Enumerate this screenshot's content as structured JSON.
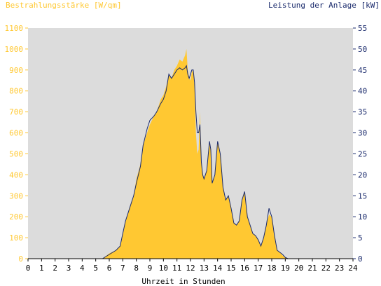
{
  "chart_data": {
    "type": "area",
    "title_left": "Bestrahlungsstärke [W/qm]",
    "title_right": "Leistung der Anlage [kW]",
    "xlabel": "Uhrzeit in Stunden",
    "x_ticks": [
      "0",
      "1",
      "2",
      "3",
      "4",
      "5",
      "6",
      "7",
      "8",
      "9",
      "10",
      "11",
      "12",
      "13",
      "14",
      "15",
      "16",
      "17",
      "18",
      "19",
      "20",
      "21",
      "22",
      "23",
      "24"
    ],
    "xlim": [
      0,
      24
    ],
    "y_left_ticks": [
      "0",
      "100",
      "200",
      "300",
      "400",
      "500",
      "600",
      "700",
      "800",
      "900",
      "1000",
      "1100"
    ],
    "ylim_left": [
      0,
      1100
    ],
    "y_right_ticks": [
      "0",
      "5",
      "10",
      "15",
      "20",
      "25",
      "30",
      "35",
      "40",
      "45",
      "50",
      "55"
    ],
    "ylim_right": [
      0,
      55
    ],
    "grid": false,
    "colors": {
      "irradiance": "#ffc832",
      "power": "#1a2a6c",
      "left_axis_text": "#ffc832",
      "right_axis_text": "#1a2a6c",
      "plot_bg": "#dcdcdc"
    },
    "series": [
      {
        "name": "Bestrahlungsstärke [W/qm]",
        "axis": "left",
        "style": "area",
        "x": [
          0,
          5.5,
          6,
          6.5,
          6.8,
          7,
          7.2,
          7.5,
          7.8,
          8,
          8.3,
          8.5,
          8.8,
          9,
          9.3,
          9.5,
          9.8,
          10,
          10.2,
          10.4,
          10.6,
          10.8,
          11,
          11.2,
          11.4,
          11.6,
          11.7,
          11.8,
          11.9,
          12,
          12.1,
          12.2,
          12.3,
          12.4,
          12.5,
          12.6,
          12.7,
          12.8,
          12.9,
          13,
          13.2,
          13.4,
          13.5,
          13.6,
          13.8,
          14,
          14.2,
          14.4,
          14.6,
          14.8,
          15,
          15.2,
          15.4,
          15.6,
          15.8,
          16,
          16.2,
          16.4,
          16.6,
          16.8,
          17,
          17.2,
          17.4,
          17.6,
          17.8,
          18,
          18.2,
          18.4,
          18.6,
          18.8,
          19,
          19.2,
          19.4,
          24
        ],
        "values": [
          0,
          0,
          25,
          40,
          60,
          110,
          180,
          240,
          300,
          380,
          450,
          540,
          600,
          640,
          680,
          700,
          760,
          780,
          820,
          880,
          860,
          900,
          920,
          950,
          940,
          970,
          1000,
          900,
          860,
          850,
          890,
          900,
          820,
          600,
          500,
          520,
          700,
          460,
          400,
          380,
          420,
          550,
          520,
          360,
          400,
          560,
          500,
          340,
          280,
          300,
          240,
          170,
          160,
          180,
          280,
          320,
          200,
          160,
          120,
          110,
          90,
          60,
          100,
          160,
          210,
          200,
          110,
          40,
          30,
          15,
          5,
          0,
          0,
          0
        ]
      },
      {
        "name": "Leistung der Anlage [kW]",
        "axis": "right",
        "style": "line",
        "x": [
          0,
          5.5,
          6,
          6.5,
          6.8,
          7,
          7.2,
          7.5,
          7.8,
          8,
          8.3,
          8.5,
          8.8,
          9,
          9.3,
          9.5,
          9.8,
          10,
          10.2,
          10.4,
          10.6,
          10.8,
          11,
          11.2,
          11.4,
          11.6,
          11.7,
          11.8,
          11.9,
          12,
          12.1,
          12.2,
          12.3,
          12.4,
          12.5,
          12.6,
          12.7,
          12.8,
          12.9,
          13,
          13.2,
          13.4,
          13.5,
          13.6,
          13.8,
          14,
          14.2,
          14.4,
          14.6,
          14.8,
          15,
          15.2,
          15.4,
          15.6,
          15.8,
          16,
          16.2,
          16.4,
          16.6,
          16.8,
          17,
          17.2,
          17.4,
          17.6,
          17.8,
          18,
          18.2,
          18.4,
          18.6,
          18.8,
          19,
          19.2,
          19.4,
          24
        ],
        "values": [
          0,
          0,
          1,
          2,
          3,
          6,
          9,
          12,
          15,
          18,
          22,
          27,
          31,
          33,
          34,
          35,
          37,
          38,
          40,
          44,
          43,
          44,
          45,
          45.5,
          45,
          45.5,
          46,
          44,
          43,
          44,
          45,
          45,
          42,
          35,
          30,
          30,
          32,
          23,
          20,
          19,
          21,
          28,
          26,
          18,
          20,
          28,
          25,
          17,
          14,
          15,
          12,
          8.5,
          8,
          9,
          14,
          16,
          10,
          8,
          6,
          5.5,
          4.5,
          3,
          5,
          8,
          12,
          10,
          5.5,
          2,
          1.5,
          1,
          0.3,
          0,
          0,
          0
        ]
      }
    ]
  }
}
